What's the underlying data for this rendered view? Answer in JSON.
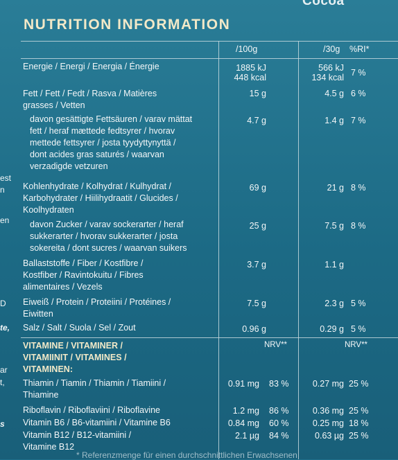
{
  "brand": "Cocoa",
  "title": "NUTRITION INFORMATION",
  "columns": {
    "per100": "/100g",
    "per30": "/30g",
    "ri": "%RI*",
    "nrv": "NRV**"
  },
  "left_edge": [
    "est",
    "n",
    "en",
    "D",
    "te,",
    "ar",
    "t,",
    "s"
  ],
  "rows": {
    "energy": {
      "l1": "Energie / Energi / Energia / Énergie",
      "a": "1885 kJ",
      "a2": "448 kcal",
      "b": "566 kJ",
      "b2": "134 kcal",
      "ri": "7 %"
    },
    "fat": {
      "l1": "Fett / Fett / Fedt / Rasva / Matières",
      "l2": "grasses / Vetten",
      "a": "15 g",
      "b": "4.5 g",
      "ri": "6 %"
    },
    "sat": {
      "l1": "davon gesättigte Fettsäuren / varav mättat",
      "l2": "fett / heraf mættede fedtsyrer / hvorav",
      "l3": "mettede fettsyrer / josta tyydyttynyttä /",
      "l4": "dont acides gras saturés / waarvan",
      "l5": "verzadigde vetzuren",
      "a": "4.7 g",
      "b": "1.4 g",
      "ri": "7 %"
    },
    "carb": {
      "l1": "Kohlenhydrate / Kolhydrat / Kulhydrat /",
      "l2": "Karbohydrater / Hiilihydraatit / Glucides /",
      "l3": "Koolhydraten",
      "a": "69 g",
      "b": "21 g",
      "ri": "8 %"
    },
    "sugar": {
      "l1": "davon Zucker / varav sockerarter / heraf",
      "l2": "sukkerarter / hvorav sukkerarter / josta",
      "l3": "sokereita / dont sucres / waarvan suikers",
      "a": "25 g",
      "b": "7.5 g",
      "ri": "8 %"
    },
    "fibre": {
      "l1": "Ballaststoffe / Fiber / Kostfibre /",
      "l2": "Kostfiber / Ravintokuitu / Fibres",
      "l3": "alimentaires / Vezels",
      "a": "3.7 g",
      "b": "1.1 g"
    },
    "protein": {
      "l1": "Eiweiß / Protein / Proteiini / Protéines /",
      "l2": "Eiwitten",
      "a": "7.5 g",
      "b": "2.3 g",
      "ri": "5 %"
    },
    "salt": {
      "l1": "Salz / Salt / Suola / Sel / Zout",
      "a": "0.96 g",
      "b": "0.29 g",
      "ri": "5 %"
    },
    "vit": {
      "l1": "VITAMINE / VITAMINER /",
      "l2": "VITAMIINIT / VITAMINES /",
      "l3": "VITAMINEN:"
    },
    "thiamin": {
      "l1": "Thiamin / Tiamin / Thiamin / Tiamiini /",
      "l2": "Thiamine",
      "a": "0.91 mg",
      "an": "83 %",
      "b": "0.27 mg",
      "bn": "25 %"
    },
    "ribo": {
      "l1": "Riboflavin / Riboflaviini / Riboflavine",
      "a": "1.2 mg",
      "an": "86 %",
      "b": "0.36 mg",
      "bn": "25 %"
    },
    "b6": {
      "l1": "Vitamin B6 / B6-vitamiini / Vitamine B6",
      "a": "0.84 mg",
      "an": "60 %",
      "b": "0.25 mg",
      "bn": "18 %"
    },
    "b12": {
      "l1": "Vitamin B12 / B12-vitamiini /",
      "l2": "Vitamine B12",
      "a": "2.1 µg",
      "an": "84 %",
      "b": "0.63 µg",
      "bn": "25 %"
    }
  },
  "footer": "* Referenzmenge für einen durchschnittlichen Erwachsenen"
}
